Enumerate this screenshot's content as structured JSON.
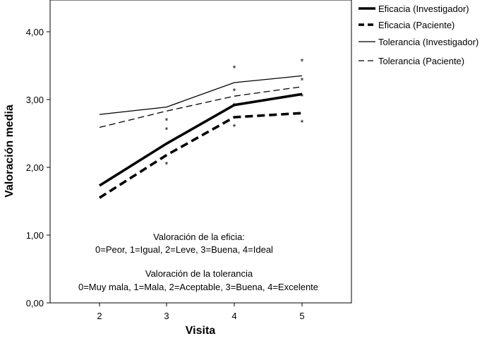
{
  "chart_data": {
    "type": "line",
    "xlabel": "Visita",
    "ylabel": "Valoración media",
    "x": [
      2,
      3,
      4,
      5
    ],
    "ylim": [
      0,
      4.5
    ],
    "yticks": [
      "0,00",
      "1,00",
      "2,00",
      "3,00",
      "4,00"
    ],
    "grid": false,
    "legend_position": "outside-right",
    "series": [
      {
        "name": "Eficacia (Investigador)",
        "values": [
          1.73,
          2.35,
          2.92,
          3.08
        ],
        "style": "thick-solid",
        "markers": [
          "",
          "*",
          "*",
          "*"
        ]
      },
      {
        "name": "Eficacia (Paciente)",
        "values": [
          1.55,
          2.18,
          2.74,
          2.8
        ],
        "style": "thick-dashed",
        "markers": [
          "",
          "*",
          "*",
          "*"
        ]
      },
      {
        "name": "Tolerancia (Investigador)",
        "values": [
          2.78,
          2.89,
          3.25,
          3.35
        ],
        "style": "thin-solid",
        "markers": [
          "",
          "",
          "*",
          "*"
        ]
      },
      {
        "name": "Tolerancia (Paciente)",
        "values": [
          2.59,
          2.83,
          3.05,
          3.19
        ],
        "style": "thin-dashed",
        "markers": [
          "",
          "*",
          "*",
          "*"
        ]
      }
    ],
    "annotations": [
      "Valoración de la eficia:",
      "0=Peor, 1=Igual, 2=Leve, 3=Buena, 4=Ideal",
      "Valoración de la tolerancia",
      "0=Muy mala, 1=Mala, 2=Aceptable, 3=Buena, 4=Excelente"
    ]
  }
}
